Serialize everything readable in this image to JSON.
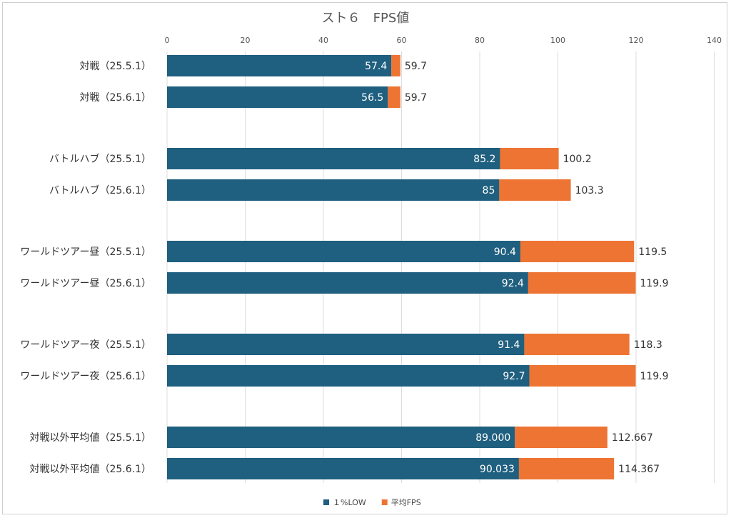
{
  "chart_data": {
    "type": "bar",
    "orientation": "horizontal",
    "title": "スト６　FPS値",
    "x_ticks": [
      "0",
      "20",
      "40",
      "60",
      "80",
      "100",
      "120",
      "140"
    ],
    "xlim": [
      0,
      140
    ],
    "grid": true,
    "legend_position": "bottom",
    "categories": [
      "対戦（25.5.1）",
      "対戦（25.6.1）",
      "バトルハブ（25.5.1）",
      "バトルハブ（25.6.1）",
      "ワールドツアー昼（25.5.1）",
      "ワールドツアー昼（25.6.1）",
      "ワールドツアー夜（25.5.1）",
      "ワールドツアー夜（25.6.1）",
      "対戦以外平均値（25.5.1）",
      "対戦以外平均値（25.6.1）"
    ],
    "series": [
      {
        "name": "１%LOW",
        "color": "#1f5f7f",
        "values": [
          57.4,
          56.5,
          85.2,
          85,
          90.4,
          92.4,
          91.4,
          92.7,
          89.0,
          90.033
        ],
        "labels": [
          "57.4",
          "56.5",
          "85.2",
          "85",
          "90.4",
          "92.4",
          "91.4",
          "92.7",
          "89.000",
          "90.033"
        ]
      },
      {
        "name": "平均FPS",
        "color": "#ed7433",
        "values": [
          59.7,
          59.7,
          100.2,
          103.3,
          119.5,
          119.9,
          118.3,
          119.9,
          112.667,
          114.367
        ],
        "labels": [
          "59.7",
          "59.7",
          "100.2",
          "103.3",
          "119.5",
          "119.9",
          "118.3",
          "119.9",
          "112.667",
          "114.367"
        ]
      }
    ]
  }
}
